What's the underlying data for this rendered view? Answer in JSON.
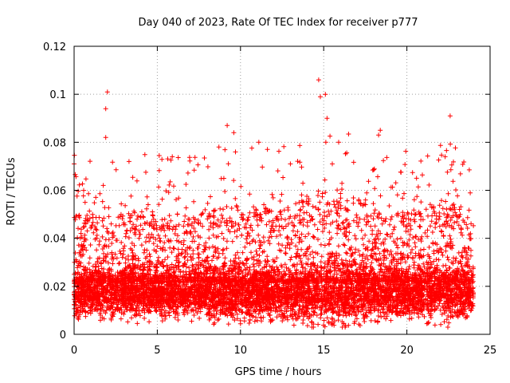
{
  "chart_data": {
    "type": "scatter",
    "title": "Day 040 of 2023, Rate Of TEC Index for receiver p777",
    "xlabel": "GPS time / hours",
    "ylabel": "ROTI / TECUs",
    "xlim": [
      0,
      25
    ],
    "ylim": [
      0,
      0.12
    ],
    "xticks": [
      0,
      5,
      10,
      15,
      20,
      25
    ],
    "xtick_labels": [
      "0",
      "5",
      "10",
      "15",
      "20",
      "25"
    ],
    "yticks": [
      0,
      0.02,
      0.04,
      0.06,
      0.08,
      0.1,
      0.12
    ],
    "ytick_labels": [
      "0",
      "0.02",
      "0.04",
      "0.06",
      "0.08",
      "0.1",
      "0.12"
    ],
    "grid": true,
    "marker": "plus",
    "series": [
      {
        "name": "ROTI",
        "color": "#ff0000",
        "x_range": [
          0,
          24
        ],
        "baseline": 0.017,
        "notable_points": [
          {
            "x": 2.0,
            "y": 0.101
          },
          {
            "x": 1.9,
            "y": 0.094
          },
          {
            "x": 1.9,
            "y": 0.082
          },
          {
            "x": 14.7,
            "y": 0.106
          },
          {
            "x": 14.8,
            "y": 0.099
          },
          {
            "x": 15.1,
            "y": 0.1
          },
          {
            "x": 22.6,
            "y": 0.091
          },
          {
            "x": 9.2,
            "y": 0.087
          },
          {
            "x": 9.6,
            "y": 0.084
          },
          {
            "x": 15.2,
            "y": 0.09
          },
          {
            "x": 18.4,
            "y": 0.085
          },
          {
            "x": 18.3,
            "y": 0.083
          },
          {
            "x": 11.1,
            "y": 0.08
          },
          {
            "x": 8.7,
            "y": 0.078
          },
          {
            "x": 9.7,
            "y": 0.076
          },
          {
            "x": 15.9,
            "y": 0.08
          },
          {
            "x": 22.3,
            "y": 0.074
          },
          {
            "x": 0.0,
            "y": 0.071
          },
          {
            "x": 3.3,
            "y": 0.072
          },
          {
            "x": 5.9,
            "y": 0.074
          },
          {
            "x": 13.0,
            "y": 0.071
          }
        ]
      }
    ]
  }
}
